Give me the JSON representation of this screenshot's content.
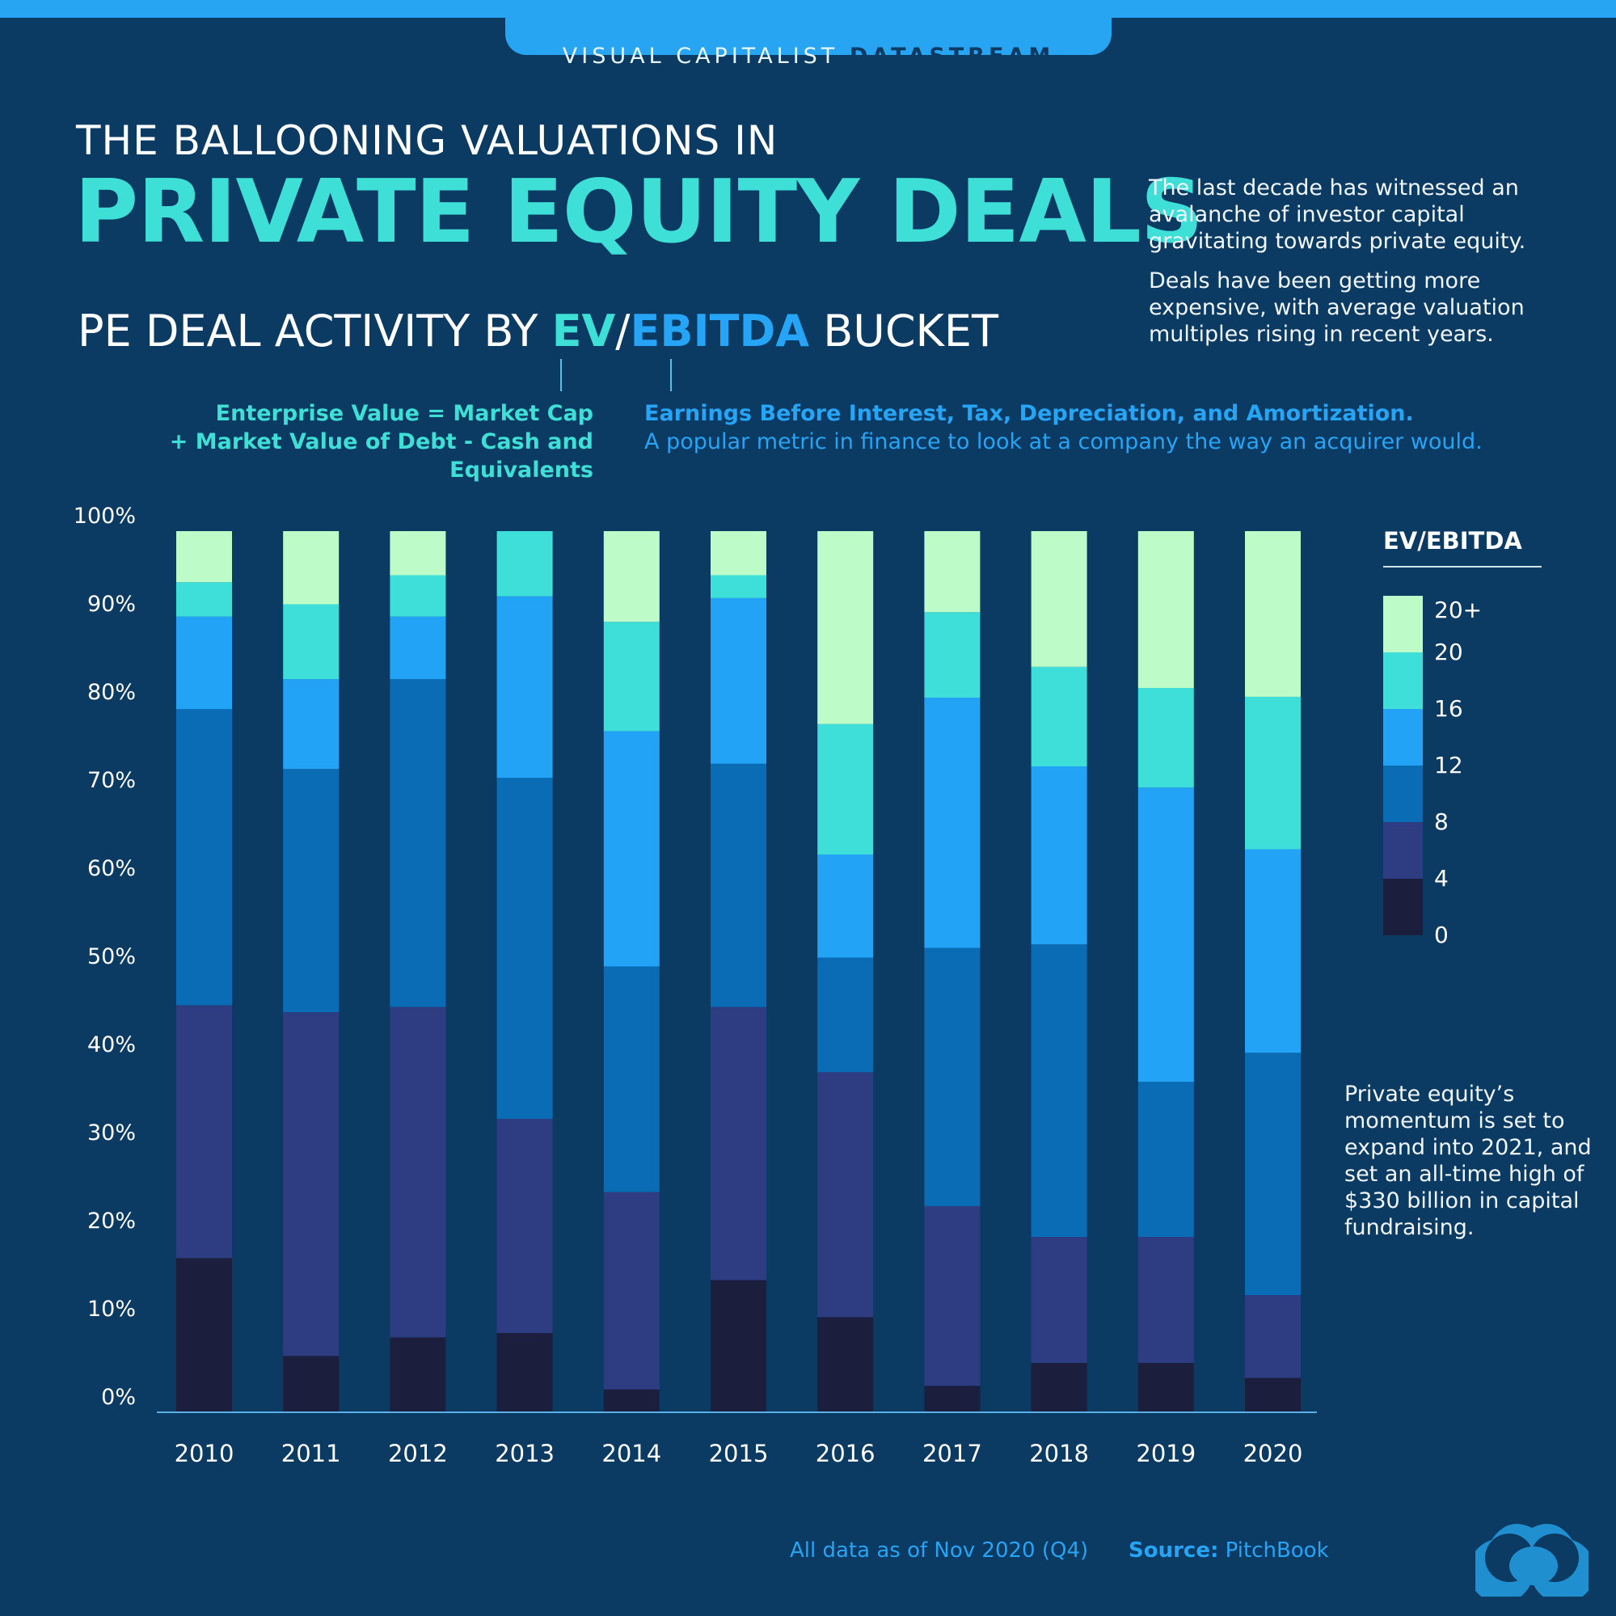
{
  "header": {
    "brand_main": "VISUAL CAPITALIST",
    "brand_sub": "DATASTREAM"
  },
  "title": {
    "line1": "THE BALLOONING VALUATIONS IN",
    "line2": "PRIVATE EQUITY DEALS",
    "subtitle_pre": "PE DEAL ACTIVITY BY ",
    "subtitle_ev": "EV",
    "subtitle_slash": "/",
    "subtitle_ebitda": "EBITDA",
    "subtitle_post": " BUCKET"
  },
  "intro": {
    "p1": "The last decade has witnessed an avalanche of investor capital gravitating towards private equity.",
    "p2": "Deals have been getting more expensive, with average valuation multiples rising in recent years."
  },
  "definitions": {
    "ev_line1": "Enterprise Value = Market Cap",
    "ev_line2": "+ Market Value of Debt - Cash and Equivalents",
    "ebitda_line1": "Earnings Before Interest, Tax, Depreciation, and Amortization.",
    "ebitda_line2": "A popular metric in finance to look at a company the way an acquirer would."
  },
  "note": "Private equity’s momentum is set to expand into 2021, and set an all-time high of $330 billion in capital fundraising.",
  "footer": {
    "asof": "All data as of Nov 2020 (Q4)",
    "source_label": "Source:",
    "source_value": " PitchBook"
  },
  "legend": {
    "title": "EV/EBITDA",
    "labels": [
      "20+",
      "20",
      "16",
      "12",
      "8",
      "4",
      "0"
    ]
  },
  "chart_data": {
    "type": "bar",
    "stacked": true,
    "normalized": true,
    "categories": [
      "2010",
      "2011",
      "2012",
      "2013",
      "2014",
      "2015",
      "2016",
      "2017",
      "2018",
      "2019",
      "2020"
    ],
    "ylim": [
      0,
      100
    ],
    "yticks": [
      "0%",
      "10%",
      "20%",
      "30%",
      "40%",
      "50%",
      "60%",
      "70%",
      "80%",
      "90%",
      "100%"
    ],
    "legend_position": "right",
    "series": [
      {
        "name": "0-4",
        "color": "#1b1f3d",
        "values": [
          17.5,
          6.4,
          8.5,
          9.0,
          2.6,
          15.0,
          10.8,
          3.0,
          5.6,
          5.6,
          3.9
        ]
      },
      {
        "name": "4-8",
        "color": "#2e3d82",
        "values": [
          28.7,
          39.0,
          37.5,
          24.3,
          22.4,
          31.0,
          27.8,
          20.4,
          14.3,
          14.3,
          9.4
        ]
      },
      {
        "name": "8-12",
        "color": "#0a6cb5",
        "values": [
          33.6,
          27.6,
          37.2,
          38.7,
          25.6,
          27.6,
          13.0,
          29.3,
          33.2,
          17.6,
          27.5
        ]
      },
      {
        "name": "12-16",
        "color": "#22a3f5",
        "values": [
          10.5,
          10.2,
          7.1,
          20.6,
          26.7,
          18.8,
          11.7,
          28.4,
          20.2,
          33.4,
          23.1
        ]
      },
      {
        "name": "16-20",
        "color": "#3ddfd8",
        "values": [
          3.9,
          8.5,
          4.7,
          7.4,
          12.4,
          2.6,
          14.8,
          9.7,
          11.3,
          11.3,
          17.3
        ]
      },
      {
        "name": "20+",
        "color": "#bdfcc9",
        "values": [
          5.8,
          8.3,
          5.0,
          0.0,
          10.3,
          5.0,
          21.9,
          9.2,
          15.4,
          17.8,
          18.8
        ]
      }
    ]
  }
}
